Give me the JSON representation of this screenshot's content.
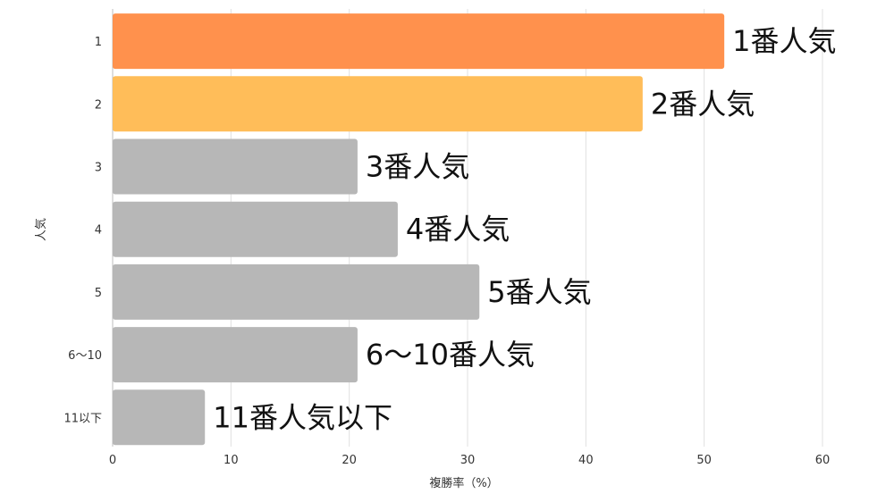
{
  "chart_data": {
    "type": "bar",
    "orientation": "horizontal",
    "categories": [
      "1",
      "2",
      "3",
      "4",
      "5",
      "6〜10",
      "11以下"
    ],
    "values": [
      51.7,
      44.8,
      20.7,
      24.1,
      31.0,
      20.7,
      7.8
    ],
    "data_labels": [
      "1番人気",
      "2番人気",
      "3番人気",
      "4番人気",
      "5番人気",
      "6〜10番人気",
      "11番人気以下"
    ],
    "colors": [
      "#ff914d",
      "#ffbd59",
      "#b7b7b7",
      "#b7b7b7",
      "#b7b7b7",
      "#b7b7b7",
      "#b7b7b7"
    ],
    "xlabel": "複勝率（%）",
    "ylabel": "人気",
    "xlim": [
      0,
      60
    ],
    "xticks": [
      0,
      10,
      20,
      30,
      40,
      50,
      60
    ],
    "grid": true
  }
}
